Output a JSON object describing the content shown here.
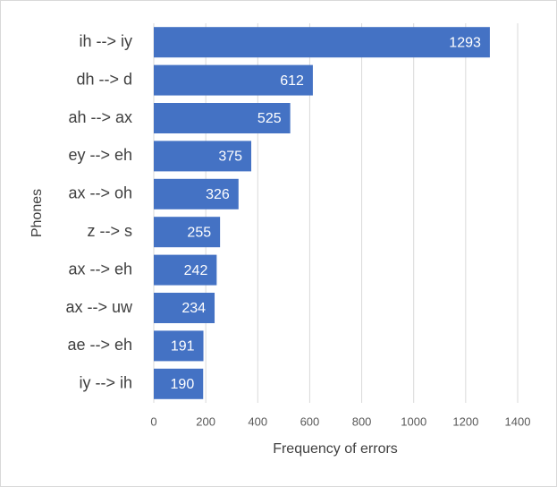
{
  "chart_data": {
    "type": "bar",
    "orientation": "horizontal",
    "x_label": "Frequency of errors",
    "y_label": "Phones",
    "categories": [
      "ih --> iy",
      "dh --> d",
      "ah --> ax",
      "ey --> eh",
      "ax --> oh",
      "z --> s",
      "ax --> eh",
      "ax --> uw",
      "ae --> eh",
      "iy --> ih"
    ],
    "values": [
      1293,
      612,
      525,
      375,
      326,
      255,
      242,
      234,
      191,
      190
    ],
    "color": "#4472c4",
    "xlim": [
      0,
      1400
    ],
    "xticks": [
      0,
      200,
      400,
      600,
      800,
      1000,
      1200,
      1400
    ],
    "grid": true
  }
}
